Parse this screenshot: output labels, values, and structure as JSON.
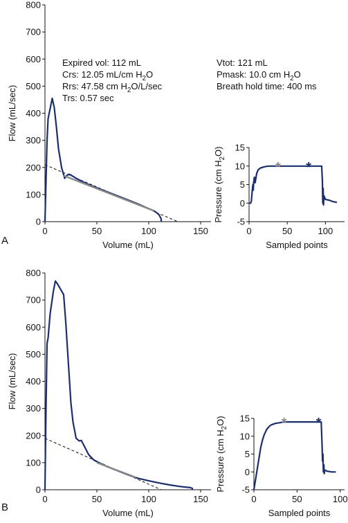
{
  "panels": [
    {
      "letter": "A"
    },
    {
      "letter": "B"
    }
  ],
  "annotations": {
    "left": [
      "Expired vol: 112 mL",
      "Crs: 12.05 mL/cm H2O",
      "Rrs: 47.58 cm H2O/L/sec",
      "Trs: 0.57 sec"
    ],
    "right": [
      "Vtot: 121 mL",
      "Pmask: 10.0 cm H2O",
      "Breath hold time: 400 ms"
    ]
  },
  "chart_data": [
    {
      "id": "A-flow-volume",
      "type": "line",
      "xlabel": "Volume (mL)",
      "ylabel": "Flow (mL/sec)",
      "xlim": [
        0,
        160
      ],
      "ylim": [
        0,
        800
      ],
      "xticks": [
        0,
        50,
        100,
        150
      ],
      "yticks": [
        0,
        100,
        200,
        300,
        400,
        500,
        600,
        700,
        800
      ],
      "series": [
        {
          "role": "measured",
          "color": "#1a2e6e",
          "x": [
            0,
            1,
            2,
            3,
            7,
            9,
            11,
            13,
            16,
            19,
            21,
            23,
            25,
            30,
            40,
            50,
            60,
            70,
            80,
            90,
            100,
            104,
            107,
            110,
            112,
            112
          ],
          "y": [
            0,
            150,
            300,
            380,
            455,
            420,
            350,
            270,
            200,
            160,
            170,
            175,
            172,
            160,
            140,
            125,
            110,
            95,
            80,
            65,
            48,
            42,
            35,
            25,
            10,
            0
          ]
        },
        {
          "role": "fit",
          "color": "#8a8a8a",
          "x": [
            18,
            105
          ],
          "y": [
            170,
            40
          ]
        },
        {
          "role": "extrapolation",
          "style": "dashed",
          "x": [
            0,
            128
          ],
          "y": [
            210,
            0
          ]
        }
      ]
    },
    {
      "id": "A-pressure",
      "type": "line",
      "xlabel": "Sampled points",
      "ylabel": "Pressure (cm H2O)",
      "xlim": [
        0,
        125
      ],
      "ylim": [
        -5,
        15
      ],
      "xticks": [
        0,
        50,
        100
      ],
      "yticks": [
        -5,
        0,
        5,
        10,
        15
      ],
      "series": [
        {
          "role": "measured",
          "color": "#1a2e6e",
          "x": [
            0,
            2,
            3,
            4,
            5,
            5.5,
            6,
            7,
            8,
            10,
            12,
            15,
            20,
            25,
            30,
            40,
            50,
            60,
            70,
            80,
            90,
            95,
            96,
            96.5,
            97,
            97.5,
            98,
            100,
            105,
            110,
            115
          ],
          "y": [
            0,
            0,
            0.5,
            3,
            5,
            3.5,
            5.5,
            7,
            5.5,
            8,
            9,
            9.5,
            9.8,
            10,
            10,
            10,
            10,
            10,
            10,
            10,
            10,
            10,
            6,
            0,
            4,
            -0.5,
            2,
            1,
            0.8,
            0.4,
            0.2
          ]
        }
      ],
      "markers": [
        {
          "x": 38,
          "y": 10,
          "color": "#8a8a8a"
        },
        {
          "x": 78,
          "y": 10,
          "color": "#1a2e6e"
        }
      ]
    },
    {
      "id": "B-flow-volume",
      "type": "line",
      "xlabel": "Volume (mL)",
      "ylabel": "Flow (mL/sec)",
      "xlim": [
        0,
        160
      ],
      "ylim": [
        0,
        800
      ],
      "xticks": [
        0,
        50,
        100,
        150
      ],
      "yticks": [
        0,
        100,
        200,
        300,
        400,
        500,
        600,
        700,
        800
      ],
      "series": [
        {
          "role": "measured",
          "color": "#1a2e6e",
          "x": [
            0,
            1,
            2,
            3,
            5,
            8,
            10,
            12,
            15,
            18,
            20,
            22,
            25,
            27,
            30,
            33,
            35,
            38,
            42,
            47,
            52,
            60,
            70,
            80,
            90,
            100,
            110,
            120,
            130,
            140,
            142,
            142
          ],
          "y": [
            0,
            300,
            540,
            560,
            650,
            730,
            770,
            760,
            740,
            720,
            620,
            500,
            320,
            250,
            190,
            180,
            182,
            160,
            130,
            110,
            100,
            85,
            70,
            55,
            42,
            33,
            25,
            18,
            12,
            8,
            5,
            0
          ]
        },
        {
          "role": "fit",
          "color": "#8a8a8a",
          "x": [
            50,
            88
          ],
          "y": [
            100,
            45
          ]
        },
        {
          "role": "extrapolation",
          "style": "dashed",
          "x": [
            0,
            112
          ],
          "y": [
            190,
            0
          ]
        }
      ]
    },
    {
      "id": "B-pressure",
      "type": "line",
      "xlabel": "Sampled points",
      "ylabel": "Pressure (cm H2O)",
      "xlim": [
        0,
        105
      ],
      "ylim": [
        -5,
        15
      ],
      "xticks": [
        0,
        50,
        100
      ],
      "yticks": [
        -5,
        0,
        5,
        10,
        15
      ],
      "series": [
        {
          "role": "measured",
          "color": "#1a2e6e",
          "x": [
            0,
            2,
            4,
            6,
            8,
            10,
            12,
            15,
            18,
            20,
            25,
            30,
            35,
            40,
            50,
            60,
            70,
            78,
            79,
            79.5,
            80,
            80.5,
            81,
            81.5,
            82,
            85,
            90,
            95
          ],
          "y": [
            -5,
            -2,
            1,
            4,
            7,
            9,
            10.5,
            12,
            12.8,
            13.2,
            13.6,
            13.8,
            14,
            14,
            14,
            14,
            14,
            14,
            7,
            3,
            5,
            0,
            2,
            -0.5,
            0.5,
            0.2,
            0,
            0
          ]
        }
      ],
      "markers": [
        {
          "x": 35,
          "y": 14,
          "color": "#8a8a8a"
        },
        {
          "x": 75,
          "y": 14,
          "color": "#1a2e6e"
        }
      ]
    }
  ]
}
